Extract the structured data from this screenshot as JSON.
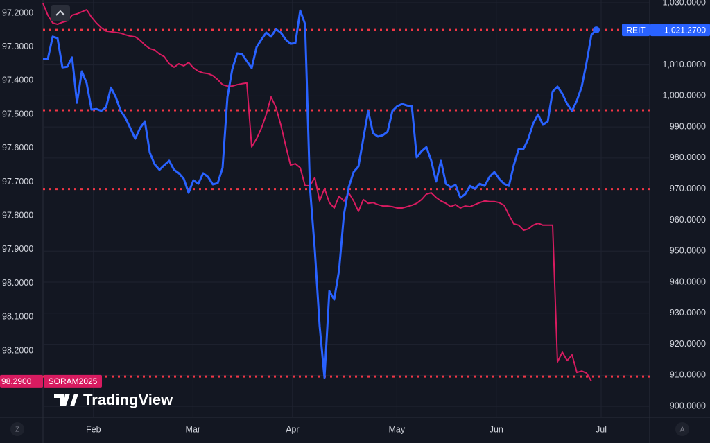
{
  "chart_data": {
    "type": "line",
    "brand": "TradingView",
    "xlim": [
      0,
      125
    ],
    "xticks": [
      {
        "value": 10.4,
        "label": "Feb"
      },
      {
        "value": 30.9,
        "label": "Mar"
      },
      {
        "value": 51.4,
        "label": "Apr"
      },
      {
        "value": 72.9,
        "label": "May"
      },
      {
        "value": 93.4,
        "label": "Jun"
      },
      {
        "value": 115,
        "label": "Jul"
      }
    ],
    "ylim": [
      97.161,
      98.393
    ],
    "y_inverted": true,
    "yticks": [
      {
        "value": 97.2,
        "label": "97.2000"
      },
      {
        "value": 97.3,
        "label": "97.3000"
      },
      {
        "value": 97.4,
        "label": "97.4000"
      },
      {
        "value": 97.5,
        "label": "97.5000"
      },
      {
        "value": 97.6,
        "label": "97.6000"
      },
      {
        "value": 97.7,
        "label": "97.7000"
      },
      {
        "value": 97.8,
        "label": "97.8000"
      },
      {
        "value": 97.9,
        "label": "97.9000"
      },
      {
        "value": 98.0,
        "label": "98.0000"
      },
      {
        "value": 98.1,
        "label": "98.1000"
      },
      {
        "value": 98.2,
        "label": "98.2000"
      }
    ],
    "y2lim": [
      896.9,
      1030.9
    ],
    "y2ticks": [
      {
        "value": 1030,
        "label": "1,030.0000"
      },
      {
        "value": 1010,
        "label": "1,010.0000"
      },
      {
        "value": 1000,
        "label": "1,000.0000"
      },
      {
        "value": 990,
        "label": "990.0000"
      },
      {
        "value": 980,
        "label": "980.0000"
      },
      {
        "value": 970,
        "label": "970.0000"
      },
      {
        "value": 960,
        "label": "960.0000"
      },
      {
        "value": 950,
        "label": "950.0000"
      },
      {
        "value": 940,
        "label": "940.0000"
      },
      {
        "value": 930,
        "label": "930.0000"
      },
      {
        "value": 920,
        "label": "920.0000"
      },
      {
        "value": 910,
        "label": "910.0000"
      },
      {
        "value": 900,
        "label": "900.0000"
      }
    ],
    "grid": true,
    "hlines": {
      "axis": "y2",
      "color": "#f23645",
      "values": [
        1021.27,
        995.4,
        970.0,
        909.6
      ]
    },
    "series": [
      {
        "name": "SORAM2025",
        "color": "#d81b60",
        "axis": "y",
        "price_label": "98.2900",
        "values": [
          97.171,
          97.206,
          97.229,
          97.233,
          97.227,
          97.223,
          97.206,
          97.202,
          97.196,
          97.19,
          97.212,
          97.229,
          97.243,
          97.253,
          97.255,
          97.257,
          97.259,
          97.264,
          97.268,
          97.27,
          97.28,
          97.294,
          97.305,
          97.309,
          97.321,
          97.329,
          97.35,
          97.36,
          97.35,
          97.356,
          97.346,
          97.362,
          97.372,
          97.377,
          97.379,
          97.385,
          97.397,
          97.412,
          97.416,
          97.416,
          97.412,
          97.409,
          97.407,
          97.596,
          97.572,
          97.541,
          97.5,
          97.448,
          97.479,
          97.531,
          97.592,
          97.65,
          97.646,
          97.658,
          97.711,
          97.711,
          97.687,
          97.756,
          97.719,
          97.761,
          97.777,
          97.742,
          97.756,
          97.732,
          97.756,
          97.787,
          97.752,
          97.763,
          97.761,
          97.767,
          97.771,
          97.771,
          97.773,
          97.777,
          97.777,
          97.773,
          97.769,
          97.763,
          97.752,
          97.736,
          97.732,
          97.746,
          97.756,
          97.763,
          97.773,
          97.767,
          97.777,
          97.771,
          97.773,
          97.767,
          97.761,
          97.756,
          97.758,
          97.758,
          97.761,
          97.769,
          97.798,
          97.824,
          97.828,
          97.843,
          97.839,
          97.828,
          97.822,
          97.828,
          97.828,
          97.828,
          98.233,
          98.204,
          98.229,
          98.212,
          98.264,
          98.26,
          98.266,
          98.29,
          null
        ]
      },
      {
        "name": "REIT",
        "color": "#2962ff",
        "axis": "y2",
        "price_label": "1,021.2700",
        "values": [
          1011.9,
          1011.9,
          1019.1,
          1018.6,
          1009.2,
          1009.4,
          1012.4,
          997.8,
          1007.9,
          1004.1,
          995.6,
          995.8,
          995.2,
          996.3,
          1002.7,
          999.6,
          995.2,
          992.9,
          989.6,
          986.2,
          989.6,
          991.8,
          981.8,
          978.0,
          976.2,
          977.7,
          979.1,
          976.2,
          975.1,
          973.3,
          968.8,
          972.8,
          971.7,
          975.1,
          973.9,
          971.5,
          971.9,
          976.8,
          999.6,
          1008.6,
          1013.7,
          1013.5,
          1011.2,
          1009.0,
          1015.7,
          1018.2,
          1020.4,
          1019.1,
          1021.5,
          1020.4,
          1018.2,
          1016.8,
          1017.0,
          1027.5,
          1023.1,
          970.6,
          950.5,
          925.9,
          909.2,
          937.1,
          934.4,
          943.8,
          961.7,
          970.6,
          975.5,
          977.3,
          986.2,
          995.2,
          988.0,
          986.9,
          987.3,
          988.5,
          995.2,
          996.7,
          997.4,
          996.9,
          996.7,
          980.2,
          982.2,
          983.5,
          979.1,
          972.4,
          979.1,
          971.7,
          970.6,
          971.3,
          967.2,
          968.4,
          971.0,
          970.1,
          971.7,
          971.0,
          973.9,
          975.5,
          973.3,
          971.7,
          971.0,
          977.7,
          982.9,
          982.9,
          986.2,
          991.1,
          994.0,
          990.7,
          991.8,
          1001.4,
          1003.0,
          1000.7,
          997.4,
          995.2,
          998.5,
          1003.0,
          1010.8,
          1019.7,
          1021.27
        ]
      }
    ],
    "buttons": {
      "left": "Z",
      "right": "A"
    }
  }
}
